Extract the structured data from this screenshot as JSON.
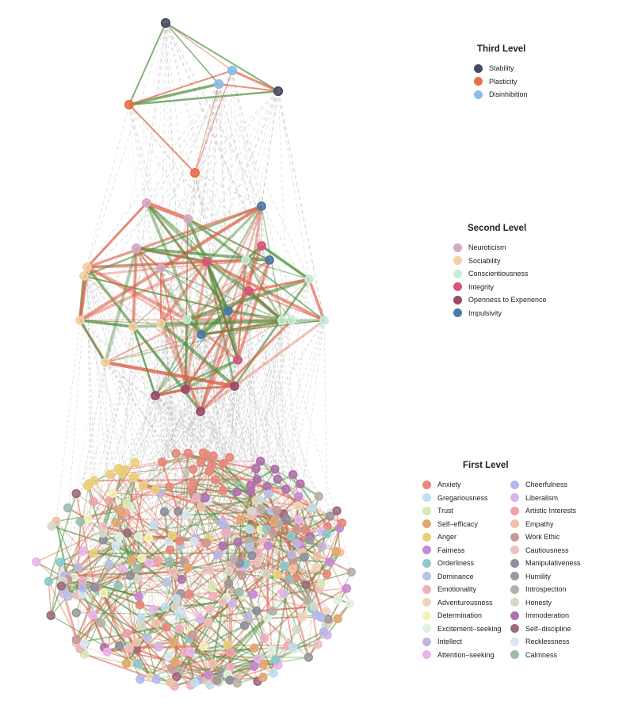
{
  "third_level": {
    "title": "Third Level",
    "items": [
      {
        "label": "Stability",
        "color": "#4a4a5e"
      },
      {
        "label": "Plasticity",
        "color": "#e8704a"
      },
      {
        "label": "Disinhibition",
        "color": "#8dbde6"
      }
    ]
  },
  "second_level": {
    "title": "Second Level",
    "items": [
      {
        "label": "Neuroticism",
        "color": "#d6a8c2"
      },
      {
        "label": "Sociability",
        "color": "#f2d1a4"
      },
      {
        "label": "Conscientiousness",
        "color": "#c8ecd6"
      },
      {
        "label": "Integrity",
        "color": "#d8547a"
      },
      {
        "label": "Openness  to Experience",
        "color": "#9a4a6c"
      },
      {
        "label": "Impulsivity",
        "color": "#4b78a8"
      }
    ]
  },
  "first_level": {
    "title": "First Level",
    "col1": [
      {
        "label": "Anxiety",
        "color": "#e8877a"
      },
      {
        "label": "Gregariousness",
        "color": "#bfe0ec"
      },
      {
        "label": "Trust",
        "color": "#d9e8b2"
      },
      {
        "label": "Self–efficacy",
        "color": "#e0a870"
      },
      {
        "label": "Anger",
        "color": "#e8d07a"
      },
      {
        "label": "Fairness",
        "color": "#c88ad6"
      },
      {
        "label": "Orderliness",
        "color": "#8cc9c9"
      },
      {
        "label": "Dominance",
        "color": "#b8c2e2"
      },
      {
        "label": "Emotionality",
        "color": "#eeb0bc"
      },
      {
        "label": "Adventurousness",
        "color": "#f2d4bc"
      },
      {
        "label": "Determination",
        "color": "#f3f3b4"
      },
      {
        "label": "Excitement–seeking",
        "color": "#e0f2e0"
      },
      {
        "label": "Intellect",
        "color": "#c0b6dc"
      },
      {
        "label": "Attention–seeking",
        "color": "#eab4ea"
      }
    ],
    "col2": [
      {
        "label": "Cheerfulness",
        "color": "#b6b8f0"
      },
      {
        "label": "Liberalism",
        "color": "#d9b6e6"
      },
      {
        "label": "Artistic  Interests",
        "color": "#f0a2a8"
      },
      {
        "label": "Empathy",
        "color": "#f2c0a8"
      },
      {
        "label": "Work  Ethic",
        "color": "#c89898"
      },
      {
        "label": "Cautiousness",
        "color": "#f0c0c0"
      },
      {
        "label": "Manipulativeness",
        "color": "#8e8e9c"
      },
      {
        "label": "Humility",
        "color": "#9a9a9a"
      },
      {
        "label": "Introspection",
        "color": "#b8b0a8"
      },
      {
        "label": "Honesty",
        "color": "#d8d8c8"
      },
      {
        "label": "Immoderation",
        "color": "#b070b0"
      },
      {
        "label": "Self–discipline",
        "color": "#9c6b7c"
      },
      {
        "label": "Recklessness",
        "color": "#dae6f2"
      },
      {
        "label": "Calmness",
        "color": "#9cbcb0"
      }
    ]
  }
}
